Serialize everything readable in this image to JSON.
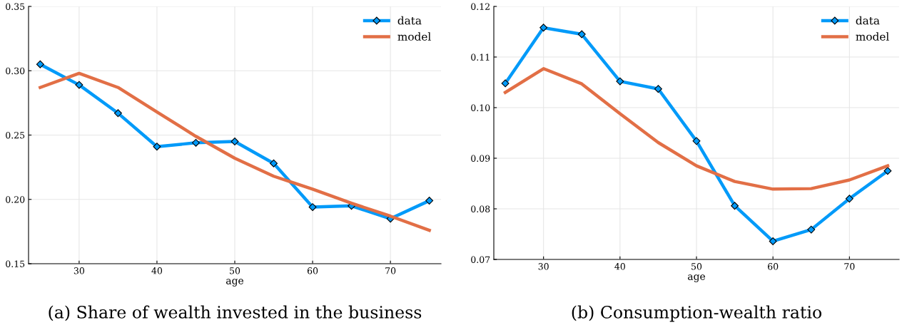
{
  "chart_data": [
    {
      "type": "line",
      "title": "(a) Share of wealth invested in the business",
      "xlabel": "age",
      "x": [
        25,
        30,
        35,
        40,
        45,
        50,
        55,
        60,
        65,
        70,
        75
      ],
      "xlim": [
        23.5,
        76.5
      ],
      "xticks": [
        30,
        40,
        50,
        60,
        70
      ],
      "ylim": [
        0.15,
        0.35
      ],
      "yticks": [
        {
          "value": 0.15,
          "label": "0.15"
        },
        {
          "value": 0.2,
          "label": "0.20"
        },
        {
          "value": 0.25,
          "label": "0.25"
        },
        {
          "value": 0.3,
          "label": "0.30"
        },
        {
          "value": 0.35,
          "label": "0.35"
        }
      ],
      "grid": true,
      "legend": "top right",
      "series": [
        {
          "name": "data",
          "color": "#009af9",
          "marker": "diamond",
          "values": [
            0.305,
            0.289,
            0.267,
            0.241,
            0.244,
            0.245,
            0.228,
            0.194,
            0.195,
            0.185,
            0.199
          ]
        },
        {
          "name": "model",
          "color": "#e26f46",
          "marker": "none",
          "values": [
            0.287,
            0.298,
            0.287,
            0.268,
            0.249,
            0.232,
            0.218,
            0.208,
            0.197,
            0.187,
            0.176
          ]
        }
      ]
    },
    {
      "type": "line",
      "title": "(b) Consumption-wealth ratio",
      "xlabel": "age",
      "x": [
        25,
        30,
        35,
        40,
        45,
        50,
        55,
        60,
        65,
        70,
        75
      ],
      "xlim": [
        23.5,
        76.5
      ],
      "xticks": [
        30,
        40,
        50,
        60,
        70
      ],
      "ylim": [
        0.07,
        0.12
      ],
      "yticks": [
        0.07,
        0.08,
        0.09,
        {
          "value": 0.1,
          "label": "0.10"
        },
        0.11,
        0.12
      ],
      "grid": true,
      "legend": "top right",
      "series": [
        {
          "name": "data",
          "color": "#009af9",
          "marker": "diamond",
          "values": [
            0.1048,
            0.1158,
            0.1145,
            0.1052,
            0.1037,
            0.0934,
            0.0806,
            0.0736,
            0.0759,
            0.082,
            0.0875
          ]
        },
        {
          "name": "model",
          "color": "#e26f46",
          "marker": "none",
          "values": [
            0.103,
            0.1077,
            0.1047,
            0.0988,
            0.0931,
            0.0885,
            0.0854,
            0.0839,
            0.084,
            0.0857,
            0.0885
          ]
        }
      ]
    }
  ]
}
